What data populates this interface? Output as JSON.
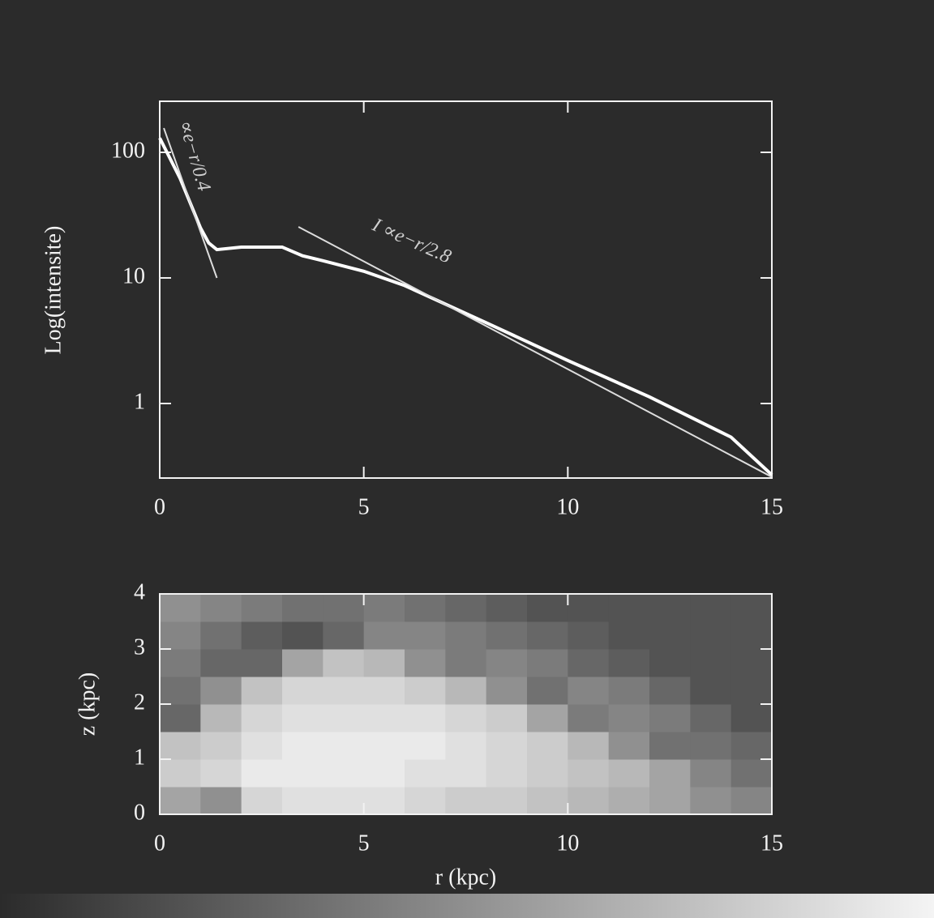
{
  "chart_data": [
    {
      "type": "line",
      "y_label": "Log(intensite)",
      "log_y": true,
      "xlim": [
        0,
        15
      ],
      "xticks": [
        0,
        5,
        10,
        15
      ],
      "ylim": [
        0.255,
        255
      ],
      "yticks": [
        1,
        10,
        100
      ],
      "annotations": [
        "∝e−r/0.4",
        "I ∝e−r/2.8"
      ],
      "series": [
        {
          "color": "#ffffff",
          "x": [
            0,
            0.5,
            1,
            1.2,
            1.4,
            2,
            3,
            3.5,
            4,
            5,
            6,
            8,
            10,
            12,
            14,
            15
          ],
          "values": [
            130,
            62,
            25,
            19,
            16.8,
            17.6,
            17.6,
            15,
            13.7,
            11.3,
            8.7,
            4.4,
            2.2,
            1.13,
            0.54,
            0.27
          ]
        },
        {
          "color": "#dddddd",
          "x": [
            0.1,
            1.4
          ],
          "values": [
            156,
            10
          ]
        },
        {
          "color": "#dddddd",
          "x": [
            3.4,
            15
          ],
          "values": [
            25.5,
            0.26
          ]
        }
      ]
    },
    {
      "type": "heatmap",
      "x_label": "r (kpc)",
      "y_label": "z (kpc)",
      "xlim": [
        0,
        15
      ],
      "xticks": [
        0,
        5,
        10,
        15
      ],
      "ylim": [
        0,
        4
      ],
      "yticks": [
        0,
        1,
        2,
        3,
        4
      ],
      "colormap": [
        "#2b2b2b",
        "#f4f4f4"
      ],
      "x": [
        0.5,
        1.5,
        2.5,
        3.5,
        4.5,
        5.5,
        6.5,
        7.5,
        8.5,
        9.5,
        10.5,
        11.5,
        12.5,
        13.5,
        14.5
      ],
      "y": [
        0.25,
        0.75,
        1.25,
        1.75,
        2.25,
        2.75,
        3.25,
        3.75
      ],
      "values": [
        [
          0.6,
          0.5,
          0.85,
          0.9,
          0.9,
          0.9,
          0.85,
          0.8,
          0.8,
          0.75,
          0.7,
          0.65,
          0.6,
          0.5,
          0.45
        ],
        [
          0.8,
          0.85,
          0.95,
          0.95,
          0.95,
          0.95,
          0.9,
          0.9,
          0.85,
          0.8,
          0.75,
          0.7,
          0.6,
          0.45,
          0.35
        ],
        [
          0.75,
          0.8,
          0.9,
          0.95,
          0.95,
          0.95,
          0.95,
          0.9,
          0.85,
          0.8,
          0.7,
          0.5,
          0.35,
          0.35,
          0.3
        ],
        [
          0.3,
          0.7,
          0.85,
          0.9,
          0.9,
          0.9,
          0.9,
          0.85,
          0.8,
          0.6,
          0.4,
          0.45,
          0.4,
          0.3,
          0.2
        ],
        [
          0.35,
          0.5,
          0.75,
          0.85,
          0.85,
          0.85,
          0.8,
          0.7,
          0.5,
          0.35,
          0.45,
          0.4,
          0.3,
          0.2,
          0.2
        ],
        [
          0.4,
          0.3,
          0.3,
          0.6,
          0.75,
          0.7,
          0.5,
          0.4,
          0.45,
          0.4,
          0.3,
          0.25,
          0.2,
          0.2,
          0.2
        ],
        [
          0.45,
          0.35,
          0.25,
          0.2,
          0.3,
          0.45,
          0.45,
          0.4,
          0.35,
          0.3,
          0.25,
          0.2,
          0.2,
          0.2,
          0.2
        ],
        [
          0.5,
          0.45,
          0.4,
          0.35,
          0.35,
          0.4,
          0.35,
          0.3,
          0.25,
          0.2,
          0.2,
          0.2,
          0.2,
          0.2,
          0.2
        ]
      ]
    }
  ]
}
